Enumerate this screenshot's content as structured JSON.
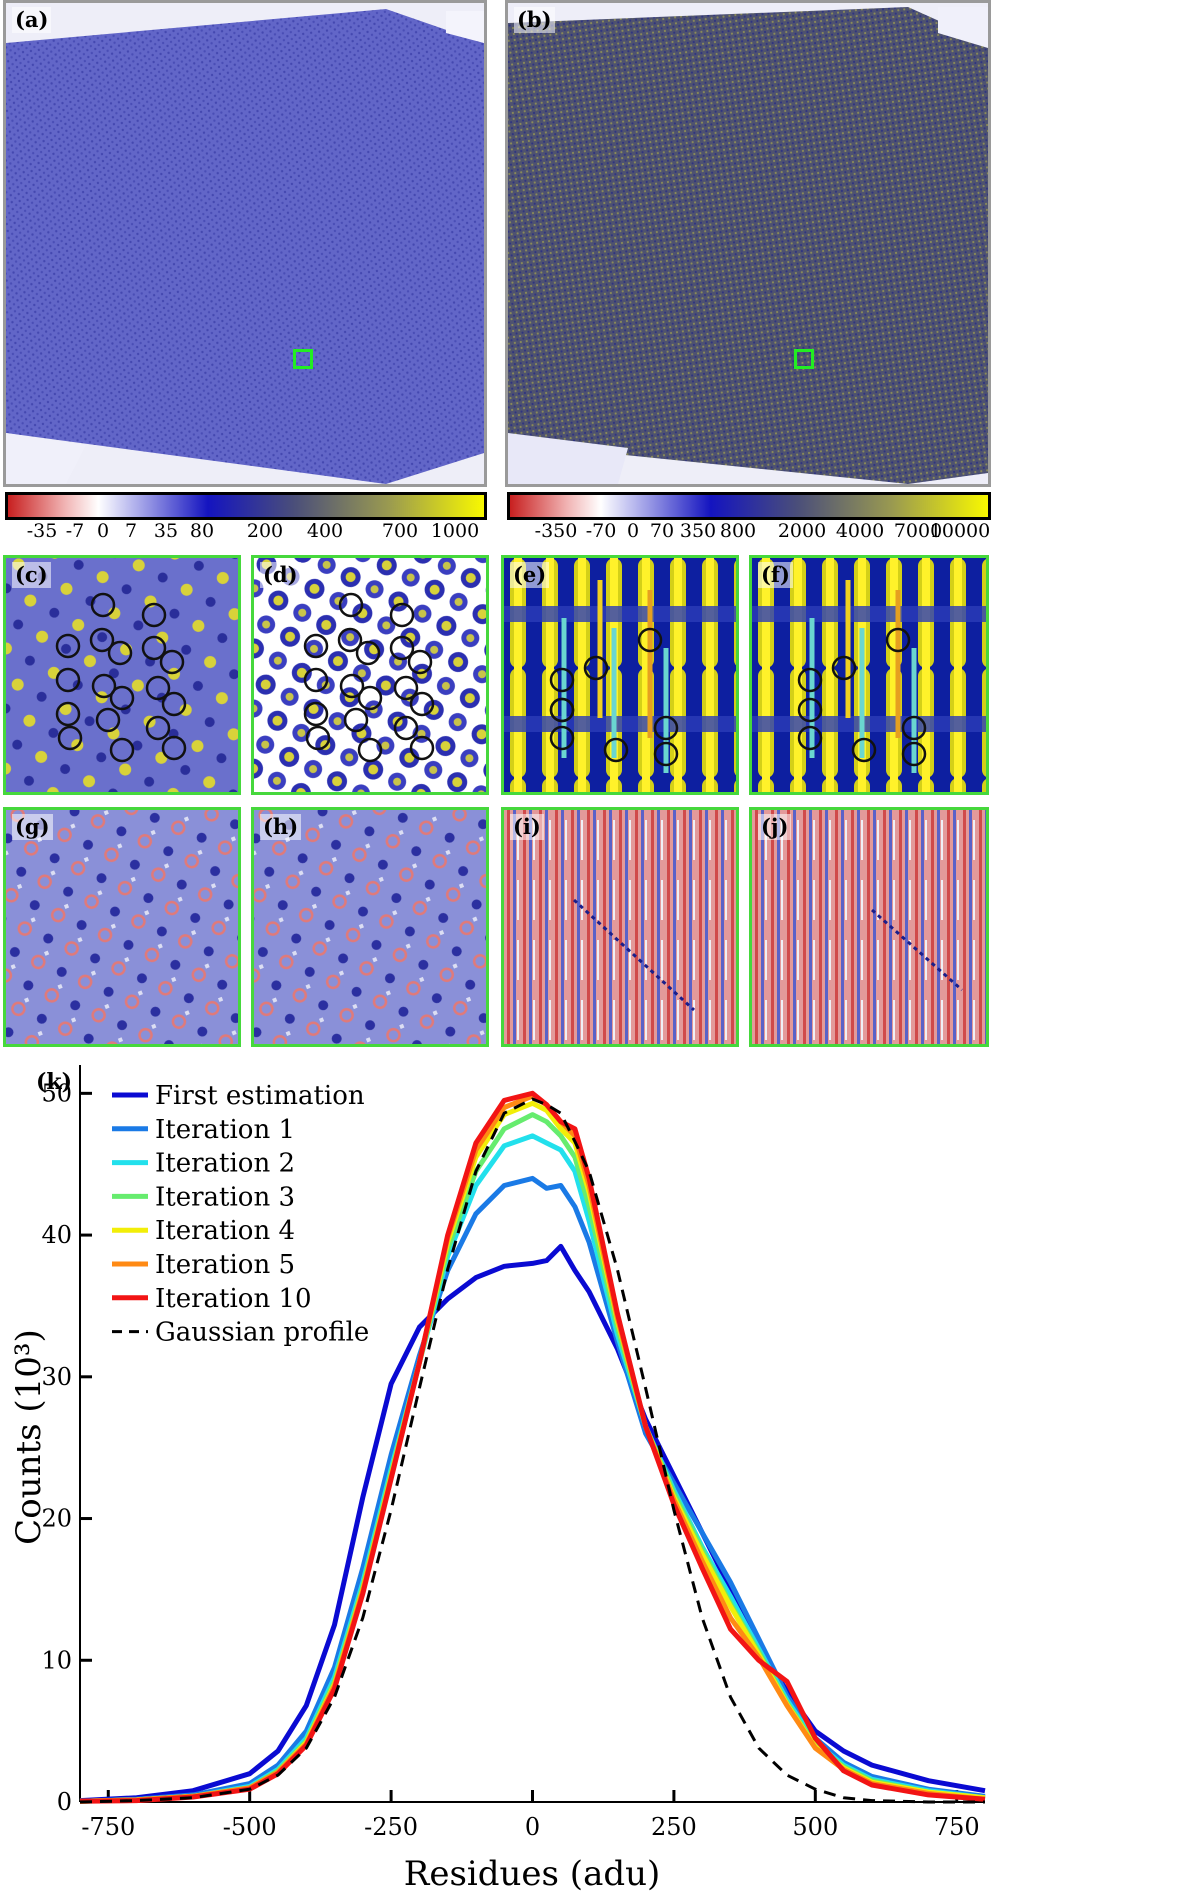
{
  "panels": {
    "a": "(a)",
    "b": "(b)",
    "c": "(c)",
    "d": "(d)",
    "e": "(e)",
    "f": "(f)",
    "g": "(g)",
    "h": "(h)",
    "i": "(i)",
    "j": "(j)",
    "k": "(k)"
  },
  "colorbar_a": {
    "ticks": [
      "-35",
      "-7",
      "0",
      "7",
      "35",
      "80",
      "200",
      "400",
      "700",
      "1000"
    ]
  },
  "colorbar_b": {
    "ticks": [
      "-350",
      "-70",
      "0",
      "70",
      "350",
      "800",
      "2000",
      "4000",
      "7000",
      "10000"
    ]
  },
  "colors": {
    "map_blue": "#5a5ec4",
    "map_dark": "#454a66",
    "cmap": [
      "#c82424",
      "#ffffff",
      "#2828c8",
      "#5a5a70",
      "#f4f400"
    ],
    "highlight": "#22ee22"
  },
  "chart_data": {
    "type": "line",
    "xlabel": "Residues (adu)",
    "ylabel": "Counts (10³)",
    "xlim": [
      -800,
      800
    ],
    "ylim": [
      0,
      52
    ],
    "xticks": [
      -750,
      -500,
      -250,
      0,
      250,
      500,
      750
    ],
    "yticks": [
      0,
      10,
      20,
      30,
      40,
      50
    ],
    "legend_position": "top-left",
    "x": [
      -800,
      -700,
      -600,
      -500,
      -450,
      -400,
      -350,
      -300,
      -250,
      -200,
      -150,
      -100,
      -50,
      0,
      25,
      50,
      75,
      100,
      150,
      200,
      250,
      300,
      350,
      400,
      450,
      500,
      550,
      600,
      700,
      800
    ],
    "series": [
      {
        "name": "First estimation",
        "color": "#0a0ad2",
        "dash": false,
        "values": [
          0.1,
          0.3,
          0.8,
          2.0,
          3.6,
          6.8,
          12.5,
          21.5,
          29.5,
          33.5,
          35.5,
          37.0,
          37.8,
          38.0,
          38.2,
          39.2,
          37.5,
          36.0,
          32.0,
          27.0,
          23.0,
          19.0,
          15.0,
          11.0,
          7.8,
          5.0,
          3.6,
          2.6,
          1.5,
          0.8
        ]
      },
      {
        "name": "Iteration 1",
        "color": "#1a7ae6",
        "dash": false,
        "values": [
          0.05,
          0.2,
          0.5,
          1.3,
          2.6,
          5.0,
          9.5,
          16.5,
          24.5,
          31.5,
          37.5,
          41.5,
          43.5,
          44.0,
          43.3,
          43.5,
          42.0,
          39.5,
          32.5,
          26.0,
          22.5,
          19.0,
          15.5,
          11.5,
          7.5,
          4.5,
          2.8,
          1.8,
          0.9,
          0.4
        ]
      },
      {
        "name": "Iteration 2",
        "color": "#22e0ec",
        "dash": false,
        "values": [
          0.05,
          0.15,
          0.4,
          1.1,
          2.3,
          4.5,
          8.8,
          15.5,
          23.5,
          31.0,
          38.5,
          43.5,
          46.3,
          47.0,
          46.5,
          46.0,
          44.5,
          41.0,
          33.0,
          26.5,
          22.0,
          18.0,
          14.5,
          10.8,
          7.2,
          4.2,
          2.6,
          1.6,
          0.8,
          0.3
        ]
      },
      {
        "name": "Iteration 3",
        "color": "#66ec6e",
        "dash": false,
        "values": [
          0.05,
          0.15,
          0.4,
          1.0,
          2.2,
          4.3,
          8.5,
          15.2,
          23.2,
          31.0,
          39.0,
          44.5,
          47.5,
          48.5,
          48.0,
          47.0,
          45.5,
          42.0,
          33.5,
          26.5,
          21.8,
          17.8,
          14.0,
          10.6,
          7.0,
          4.0,
          2.5,
          1.5,
          0.7,
          0.3
        ]
      },
      {
        "name": "Iteration 4",
        "color": "#f2ee08",
        "dash": false,
        "values": [
          0.05,
          0.15,
          0.4,
          1.0,
          2.1,
          4.2,
          8.3,
          15.0,
          23.0,
          31.0,
          39.5,
          45.5,
          48.5,
          49.3,
          48.8,
          47.5,
          46.5,
          43.0,
          34.0,
          26.5,
          21.5,
          17.5,
          13.8,
          10.4,
          6.9,
          3.9,
          2.4,
          1.4,
          0.7,
          0.3
        ]
      },
      {
        "name": "Iteration 5",
        "color": "#ff8a14",
        "dash": false,
        "values": [
          0.05,
          0.15,
          0.4,
          1.0,
          2.1,
          4.1,
          8.2,
          14.9,
          22.9,
          31.0,
          39.8,
          46.0,
          49.0,
          49.8,
          49.2,
          48.0,
          47.0,
          43.5,
          34.2,
          26.5,
          21.3,
          17.0,
          13.0,
          10.2,
          6.8,
          3.8,
          2.3,
          1.3,
          0.6,
          0.2
        ]
      },
      {
        "name": "Iteration 10",
        "color": "#f21414",
        "dash": false,
        "values": [
          0.05,
          0.1,
          0.35,
          0.9,
          2.0,
          4.0,
          8.0,
          14.7,
          22.8,
          31.0,
          40.0,
          46.5,
          49.5,
          50.0,
          49.2,
          48.0,
          47.5,
          44.0,
          34.5,
          26.5,
          21.0,
          16.5,
          12.2,
          10.0,
          8.5,
          4.5,
          2.2,
          1.2,
          0.5,
          0.2
        ]
      },
      {
        "name": "Gaussian profile",
        "color": "#000000",
        "dash": true,
        "values": [
          0.0,
          0.1,
          0.3,
          0.9,
          1.9,
          3.8,
          7.4,
          13.0,
          20.6,
          29.2,
          37.6,
          44.5,
          48.6,
          49.6,
          49.2,
          48.6,
          46.6,
          44.5,
          37.6,
          29.2,
          20.6,
          13.0,
          7.4,
          3.8,
          1.9,
          0.9,
          0.3,
          0.1,
          0.0,
          0.0
        ]
      }
    ]
  }
}
